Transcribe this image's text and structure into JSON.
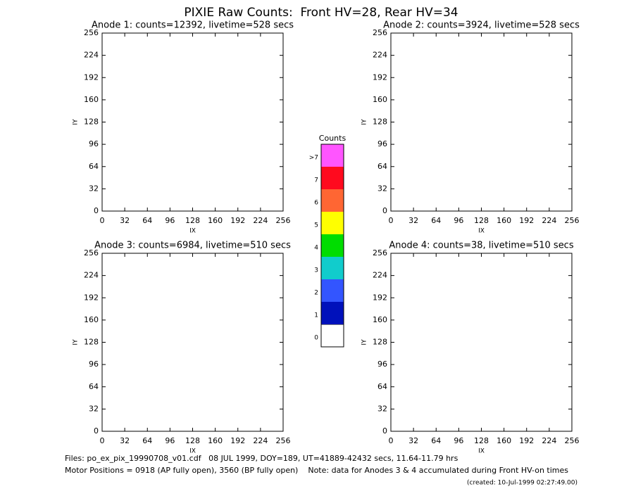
{
  "title": "PIXIE Raw Counts:  Front HV=28, Rear HV=34",
  "chart_data": [
    {
      "type": "scatter",
      "title": "Anode 1: counts=12392, livetime=528 secs",
      "xlabel": "IX",
      "ylabel": "IY",
      "xlim": [
        0,
        256
      ],
      "ylim": [
        0,
        256
      ],
      "xticks": [
        0,
        32,
        64,
        96,
        128,
        160,
        192,
        224,
        256
      ],
      "yticks": [
        0,
        32,
        64,
        96,
        128,
        160,
        192,
        224,
        256
      ],
      "color": "#0000cc"
    },
    {
      "type": "scatter",
      "title": "Anode 2: counts=3924, livetime=528 secs",
      "xlabel": "IX",
      "ylabel": "IY",
      "xlim": [
        0,
        256
      ],
      "ylim": [
        0,
        256
      ],
      "xticks": [
        0,
        32,
        64,
        96,
        128,
        160,
        192,
        224,
        256
      ],
      "yticks": [
        0,
        32,
        64,
        96,
        128,
        160,
        192,
        224,
        256
      ],
      "color": "#0000cc"
    },
    {
      "type": "scatter",
      "title": "Anode 3: counts=6984, livetime=510 secs",
      "xlabel": "IX",
      "ylabel": "IY",
      "xlim": [
        0,
        256
      ],
      "ylim": [
        0,
        256
      ],
      "xticks": [
        0,
        32,
        64,
        96,
        128,
        160,
        192,
        224,
        256
      ],
      "yticks": [
        0,
        32,
        64,
        96,
        128,
        160,
        192,
        224,
        256
      ],
      "color": "#0000cc"
    },
    {
      "type": "scatter",
      "title": "Anode 4: counts=38, livetime=510 secs",
      "xlabel": "IX",
      "ylabel": "IY",
      "xlim": [
        0,
        256
      ],
      "ylim": [
        0,
        256
      ],
      "xticks": [
        0,
        32,
        64,
        96,
        128,
        160,
        192,
        224,
        256
      ],
      "yticks": [
        0,
        32,
        64,
        96,
        128,
        160,
        192,
        224,
        256
      ],
      "color": "#0000cc"
    }
  ],
  "colorbar": {
    "title": "Counts",
    "levels": [
      {
        "label": "0",
        "color": "#ffffff"
      },
      {
        "label": "1",
        "color": "#0011bb"
      },
      {
        "label": "2",
        "color": "#3355ff"
      },
      {
        "label": "3",
        "color": "#11cccc"
      },
      {
        "label": "4",
        "color": "#00dd00"
      },
      {
        "label": "5",
        "color": "#ffff00"
      },
      {
        "label": "6",
        "color": "#ff6633"
      },
      {
        "label": "7",
        "color": "#ff0a1e"
      },
      {
        "label": ">7",
        "color": "#ff55ff"
      }
    ]
  },
  "footer": {
    "files": "Files: po_ex_pix_19990708_v01.cdf   08 JUL 1999, DOY=189, UT=41889-42432 secs, 11.64-11.79 hrs",
    "motor": "Motor Positions = 0918 (AP fully open), 3560 (BP fully open)    Note: data for Anodes 3 & 4 accumulated during Front HV-on times",
    "created": "(created: 10-Jul-1999 02:27:49.00)"
  }
}
